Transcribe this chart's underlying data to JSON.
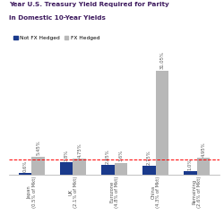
{
  "title_line1": "Year U.S. Treasury Yield Required for Parity",
  "title_line2": "in Domestic 10-Year Yields",
  "title_color": "#3d1a5e",
  "categories": [
    "Japan\n(0.5% of Mkt)",
    "UK\n(2.1% of Mkt)",
    "Eurozone\n(4.8% of Mkt)",
    "China\n(4.3% of Mkt)",
    "Remaining\n(2.6% of Mkt)"
  ],
  "not_fx_hedged": [
    0.6,
    3.8,
    2.85,
    2.75,
    1.0
  ],
  "fx_hedged": [
    5.45,
    4.75,
    3.6,
    31.05,
    4.95
  ],
  "not_fx_hedged_labels": [
    "0.6%",
    "3.8%",
    "2.85%",
    "2.75%",
    "1.0%"
  ],
  "fx_hedged_labels": [
    "5.45%",
    "4.75%",
    "3.6%",
    "31.05%",
    "4.95%"
  ],
  "blue_color": "#1a3a8c",
  "gray_color": "#b8b8b8",
  "red_line_y": 4.6,
  "ylim": [
    0,
    36
  ],
  "bar_width": 0.32,
  "legend_labels": [
    "Not FX Hedged",
    "FX Hedged"
  ],
  "background_color": "#ffffff",
  "font_size_title": 5.2,
  "font_size_bar_labels": 3.8,
  "font_size_ticks": 3.8,
  "font_size_legend": 4.2
}
